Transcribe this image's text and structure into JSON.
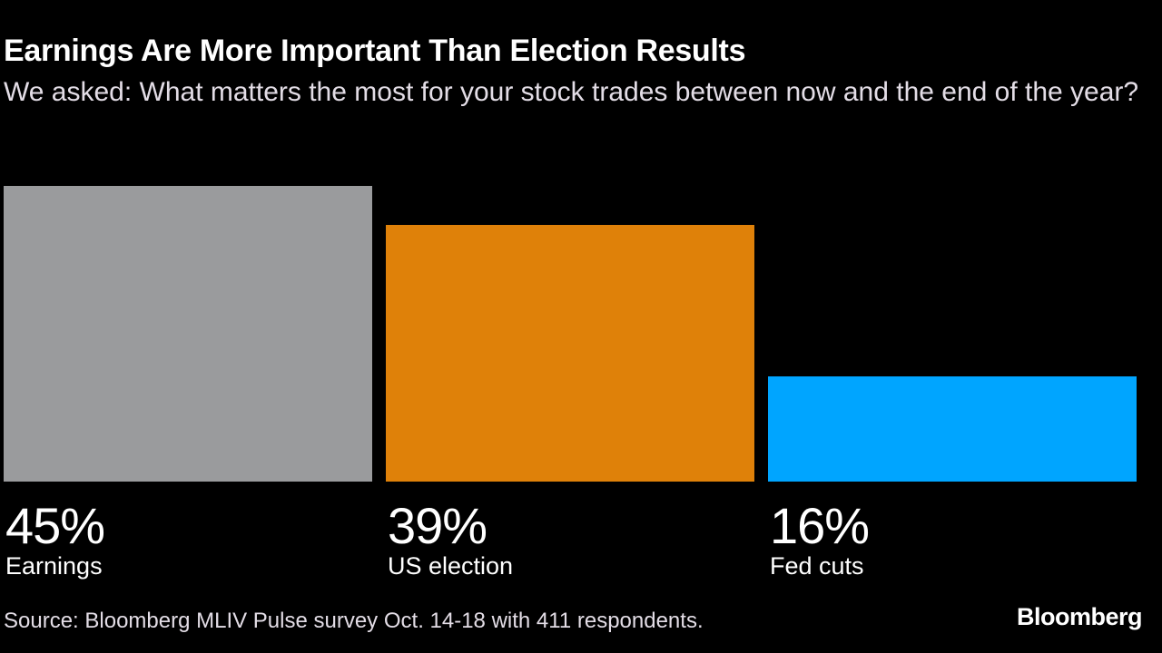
{
  "chart_data": {
    "type": "bar",
    "title": "Earnings Are More Important Than Election Results",
    "subtitle": "We asked: What matters the most for your stock trades between now and the end of the year?",
    "categories": [
      "Earnings",
      "US election",
      "Fed cuts"
    ],
    "values": [
      45,
      39,
      16
    ],
    "value_labels": [
      "45%",
      "39%",
      "16%"
    ],
    "colors": [
      "#9a9b9d",
      "#df8109",
      "#00a5ff"
    ],
    "ylim": [
      0,
      45
    ],
    "grid": false,
    "source": "Source: Bloomberg MLIV Pulse survey Oct. 14-18 with 411 respondents.",
    "logo": "Bloomberg"
  }
}
